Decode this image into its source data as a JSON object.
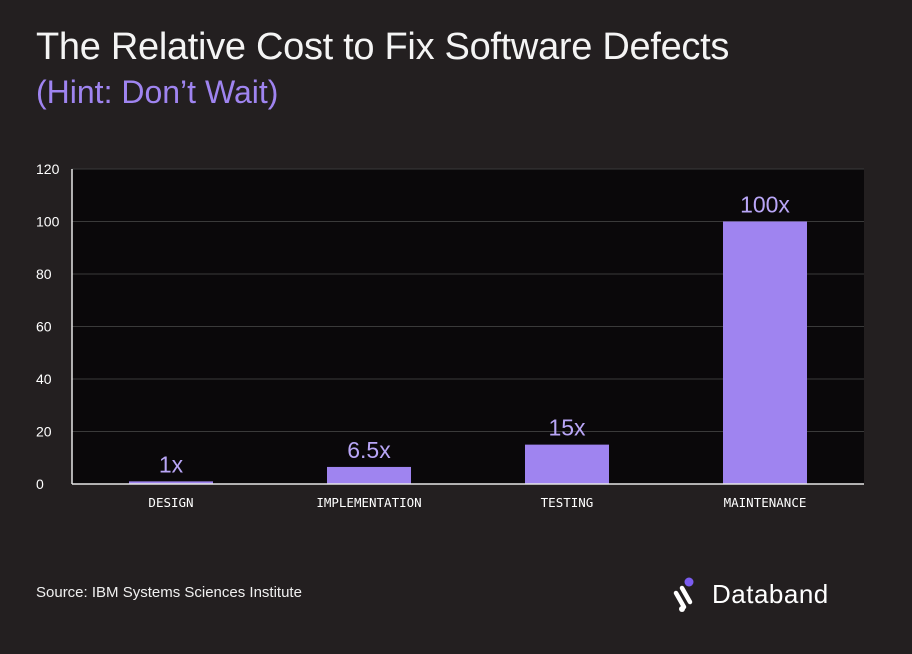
{
  "header": {
    "title": "The Relative Cost to Fix Software Defects",
    "subtitle": "(Hint: Don’t Wait)"
  },
  "footer": {
    "source": "Source: IBM Systems Sciences Institute",
    "brand": "Databand"
  },
  "colors": {
    "background": "#231f20",
    "plot_background": "#0a080a",
    "bar": "#9f84f0",
    "data_label": "#b9a6f7",
    "grid": "#3a3a3a",
    "brand_accent": "#7b5cf0"
  },
  "icons": {
    "brand_logo": "databand-logo-icon"
  },
  "chart_data": {
    "type": "bar",
    "categories": [
      "DESIGN",
      "IMPLEMENTATION",
      "TESTING",
      "MAINTENANCE"
    ],
    "values": [
      1,
      6.5,
      15,
      100
    ],
    "data_labels": [
      "1x",
      "6.5x",
      "15x",
      "100x"
    ],
    "xlabel": "",
    "ylabel": "",
    "ylim": [
      0,
      120
    ],
    "yticks": [
      0,
      20,
      40,
      60,
      80,
      100,
      120
    ],
    "grid": true,
    "legend": "none"
  }
}
